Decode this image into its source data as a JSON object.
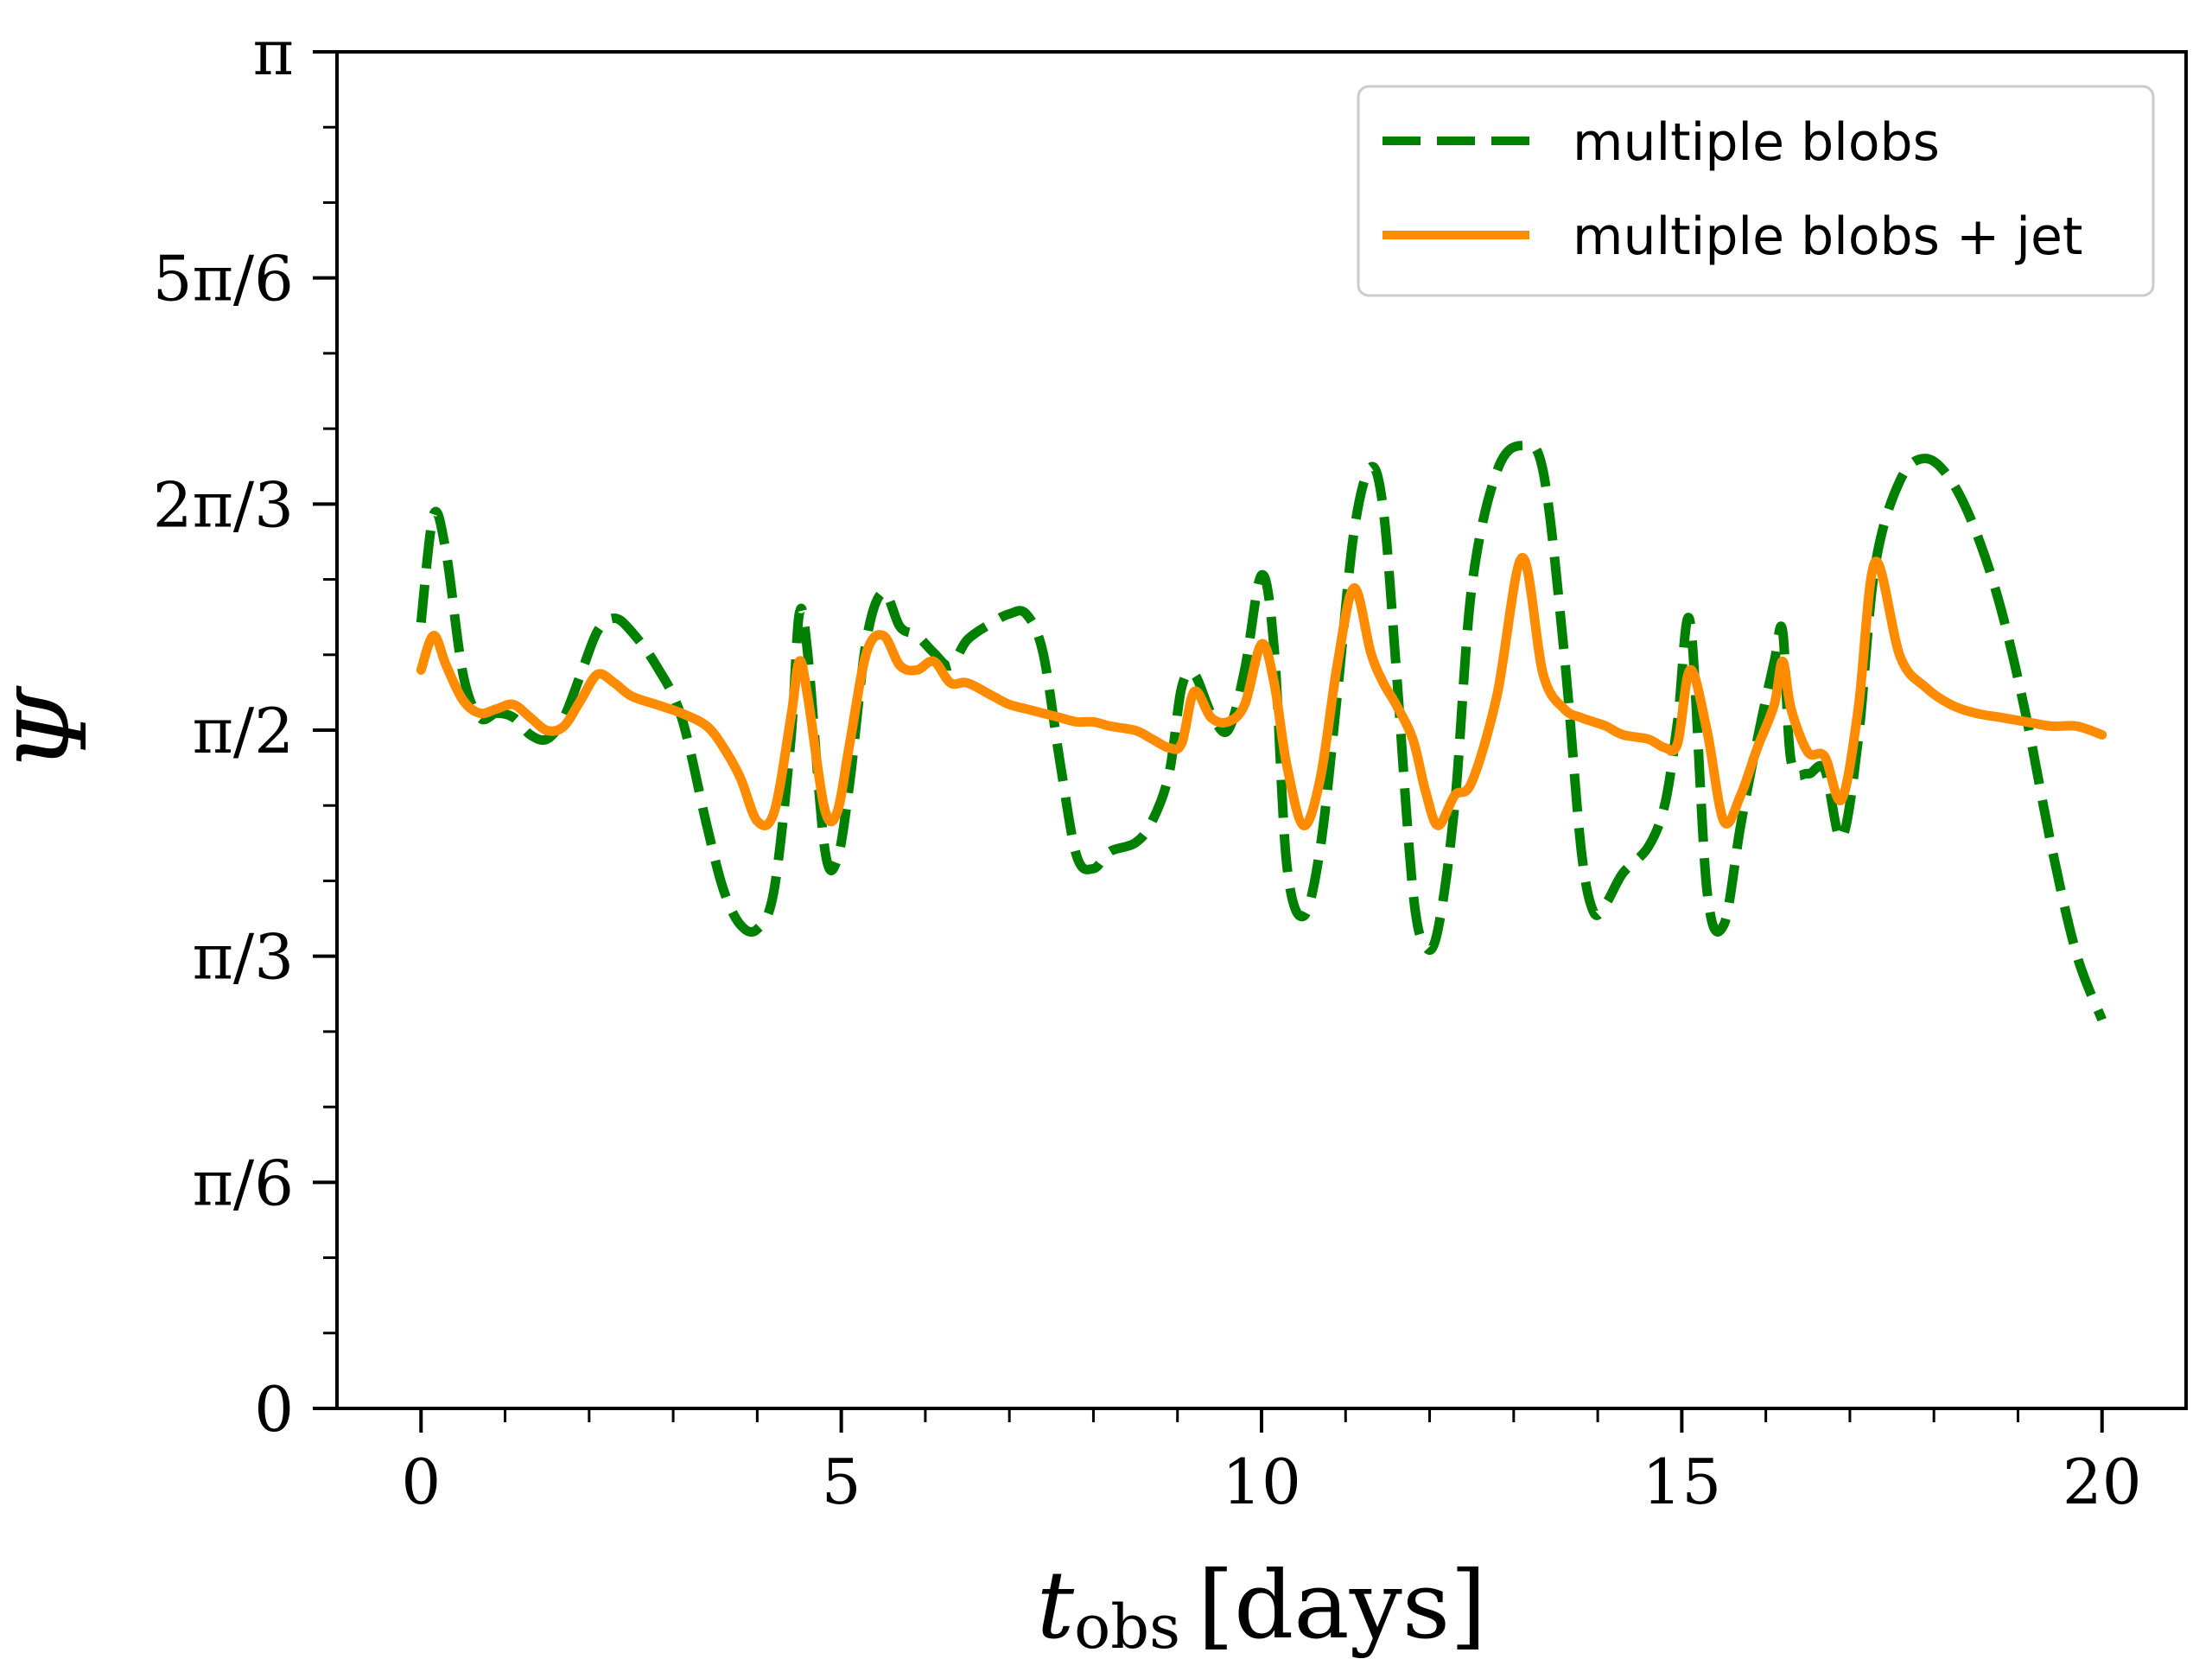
{
  "chart_data": {
    "type": "line",
    "title": "",
    "xlabel": "t_obs [days]",
    "xlabel_main": "t",
    "xlabel_sub": "obs",
    "xlabel_unit": "[days]",
    "ylabel": "Ψ",
    "xlim": [
      -1,
      21
    ],
    "ylim": [
      0,
      3.14159
    ],
    "x_ticks": [
      0,
      5,
      10,
      15,
      20
    ],
    "x_tick_labels": [
      "0",
      "5",
      "10",
      "15",
      "20"
    ],
    "y_ticks": [
      0,
      0.5236,
      1.0472,
      1.5708,
      2.0944,
      2.618,
      3.14159
    ],
    "y_tick_labels": [
      "0",
      "π/6",
      "π/3",
      "π/2",
      "2π/3",
      "5π/6",
      "π"
    ],
    "grid": false,
    "legend_position": "top-right",
    "series": [
      {
        "name": "multiple blobs",
        "color": "#008000",
        "style": "dashed",
        "x": [
          0,
          0.15,
          0.3,
          0.5,
          0.7,
          0.9,
          1.1,
          1.3,
          1.5,
          1.7,
          1.9,
          2.1,
          2.3,
          2.5,
          2.8,
          3.1,
          3.4,
          3.6,
          3.8,
          4.0,
          4.2,
          4.4,
          4.5,
          4.6,
          4.8,
          4.95,
          5.1,
          5.3,
          5.5,
          5.7,
          5.9,
          6.1,
          6.3,
          6.5,
          6.8,
          7.0,
          7.2,
          7.4,
          7.6,
          7.8,
          8.0,
          8.2,
          8.5,
          8.7,
          8.9,
          9.05,
          9.2,
          9.4,
          9.6,
          9.8,
          10.0,
          10.15,
          10.3,
          10.5,
          10.7,
          10.9,
          11.1,
          11.3,
          11.45,
          11.6,
          11.8,
          11.95,
          12.1,
          12.3,
          12.5,
          12.8,
          13.1,
          13.35,
          13.6,
          13.8,
          13.95,
          14.1,
          14.3,
          14.6,
          14.8,
          14.95,
          15.1,
          15.3,
          15.5,
          15.7,
          15.9,
          16.1,
          16.2,
          16.3,
          16.5,
          16.7,
          16.9,
          17.1,
          17.3,
          17.6,
          17.9,
          18.2,
          18.5,
          18.8,
          19.1,
          19.4,
          19.7,
          20.0
        ],
        "y": [
          1.82,
          2.07,
          1.98,
          1.7,
          1.6,
          1.61,
          1.6,
          1.56,
          1.55,
          1.6,
          1.7,
          1.8,
          1.83,
          1.8,
          1.72,
          1.6,
          1.35,
          1.2,
          1.12,
          1.11,
          1.2,
          1.55,
          1.84,
          1.75,
          1.3,
          1.27,
          1.45,
          1.78,
          1.89,
          1.81,
          1.79,
          1.75,
          1.72,
          1.78,
          1.82,
          1.84,
          1.84,
          1.75,
          1.5,
          1.28,
          1.25,
          1.29,
          1.31,
          1.36,
          1.47,
          1.67,
          1.7,
          1.61,
          1.57,
          1.71,
          1.93,
          1.76,
          1.26,
          1.14,
          1.3,
          1.65,
          2.03,
          2.18,
          2.08,
          1.72,
          1.2,
          1.07,
          1.11,
          1.4,
          1.9,
          2.17,
          2.23,
          2.17,
          1.75,
          1.3,
          1.15,
          1.17,
          1.24,
          1.3,
          1.4,
          1.59,
          1.82,
          1.2,
          1.12,
          1.35,
          1.55,
          1.73,
          1.8,
          1.5,
          1.47,
          1.48,
          1.32,
          1.55,
          1.95,
          2.15,
          2.2,
          2.15,
          2.03,
          1.85,
          1.6,
          1.3,
          1.05,
          0.9
        ]
      },
      {
        "name": "multiple blobs + jet",
        "color": "#ff8c00",
        "style": "solid",
        "x": [
          0,
          0.15,
          0.3,
          0.5,
          0.7,
          0.9,
          1.1,
          1.3,
          1.5,
          1.7,
          1.9,
          2.1,
          2.3,
          2.5,
          2.8,
          3.1,
          3.4,
          3.6,
          3.8,
          4.0,
          4.2,
          4.4,
          4.5,
          4.6,
          4.8,
          4.95,
          5.1,
          5.3,
          5.5,
          5.7,
          5.9,
          6.1,
          6.3,
          6.5,
          6.8,
          7.0,
          7.2,
          7.4,
          7.6,
          7.8,
          8.0,
          8.2,
          8.5,
          8.7,
          8.9,
          9.05,
          9.2,
          9.4,
          9.6,
          9.8,
          10.0,
          10.15,
          10.3,
          10.5,
          10.7,
          10.9,
          11.1,
          11.3,
          11.45,
          11.6,
          11.8,
          11.95,
          12.1,
          12.3,
          12.5,
          12.8,
          13.1,
          13.35,
          13.6,
          13.8,
          13.95,
          14.1,
          14.3,
          14.6,
          14.8,
          14.95,
          15.1,
          15.3,
          15.5,
          15.7,
          15.9,
          16.1,
          16.2,
          16.3,
          16.5,
          16.7,
          16.9,
          17.1,
          17.3,
          17.6,
          17.9,
          18.2,
          18.5,
          18.8,
          19.1,
          19.4,
          19.7,
          20.0
        ],
        "y": [
          1.71,
          1.79,
          1.72,
          1.64,
          1.61,
          1.62,
          1.63,
          1.6,
          1.57,
          1.58,
          1.64,
          1.7,
          1.68,
          1.65,
          1.63,
          1.61,
          1.58,
          1.53,
          1.46,
          1.36,
          1.38,
          1.6,
          1.73,
          1.65,
          1.39,
          1.38,
          1.54,
          1.75,
          1.79,
          1.72,
          1.71,
          1.73,
          1.68,
          1.68,
          1.65,
          1.63,
          1.62,
          1.61,
          1.6,
          1.59,
          1.59,
          1.58,
          1.57,
          1.55,
          1.53,
          1.54,
          1.66,
          1.6,
          1.59,
          1.63,
          1.77,
          1.68,
          1.49,
          1.35,
          1.46,
          1.72,
          1.9,
          1.75,
          1.68,
          1.63,
          1.55,
          1.43,
          1.35,
          1.42,
          1.45,
          1.65,
          1.97,
          1.7,
          1.62,
          1.6,
          1.59,
          1.58,
          1.56,
          1.55,
          1.53,
          1.54,
          1.71,
          1.57,
          1.36,
          1.42,
          1.53,
          1.63,
          1.73,
          1.62,
          1.52,
          1.51,
          1.41,
          1.62,
          1.96,
          1.74,
          1.67,
          1.63,
          1.61,
          1.6,
          1.59,
          1.58,
          1.58,
          1.56
        ]
      }
    ]
  }
}
